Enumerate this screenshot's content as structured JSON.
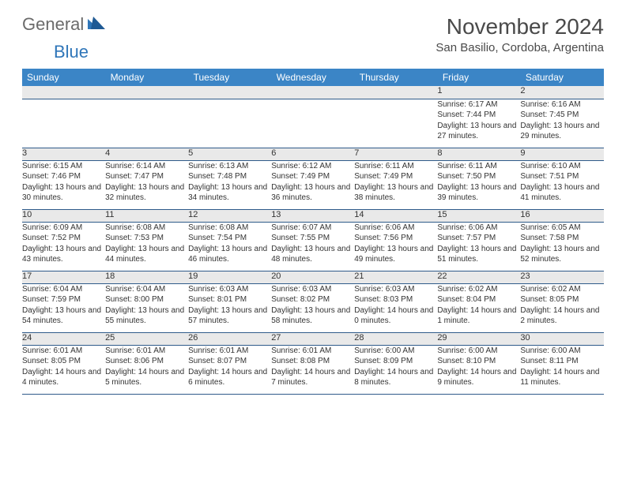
{
  "logo": {
    "word1": "General",
    "word2": "Blue"
  },
  "title": "November 2024",
  "location": "San Basilio, Cordoba, Argentina",
  "colors": {
    "header_bg": "#3b85c6",
    "header_text": "#ffffff",
    "daynum_bg": "#e9e9e9",
    "border": "#2f5b8a",
    "logo_gray": "#6b6b6b",
    "logo_blue": "#2f76b9"
  },
  "day_headers": [
    "Sunday",
    "Monday",
    "Tuesday",
    "Wednesday",
    "Thursday",
    "Friday",
    "Saturday"
  ],
  "weeks": [
    [
      null,
      null,
      null,
      null,
      null,
      {
        "n": "1",
        "sr": "6:17 AM",
        "ss": "7:44 PM",
        "dl": "13 hours and 27 minutes."
      },
      {
        "n": "2",
        "sr": "6:16 AM",
        "ss": "7:45 PM",
        "dl": "13 hours and 29 minutes."
      }
    ],
    [
      {
        "n": "3",
        "sr": "6:15 AM",
        "ss": "7:46 PM",
        "dl": "13 hours and 30 minutes."
      },
      {
        "n": "4",
        "sr": "6:14 AM",
        "ss": "7:47 PM",
        "dl": "13 hours and 32 minutes."
      },
      {
        "n": "5",
        "sr": "6:13 AM",
        "ss": "7:48 PM",
        "dl": "13 hours and 34 minutes."
      },
      {
        "n": "6",
        "sr": "6:12 AM",
        "ss": "7:49 PM",
        "dl": "13 hours and 36 minutes."
      },
      {
        "n": "7",
        "sr": "6:11 AM",
        "ss": "7:49 PM",
        "dl": "13 hours and 38 minutes."
      },
      {
        "n": "8",
        "sr": "6:11 AM",
        "ss": "7:50 PM",
        "dl": "13 hours and 39 minutes."
      },
      {
        "n": "9",
        "sr": "6:10 AM",
        "ss": "7:51 PM",
        "dl": "13 hours and 41 minutes."
      }
    ],
    [
      {
        "n": "10",
        "sr": "6:09 AM",
        "ss": "7:52 PM",
        "dl": "13 hours and 43 minutes."
      },
      {
        "n": "11",
        "sr": "6:08 AM",
        "ss": "7:53 PM",
        "dl": "13 hours and 44 minutes."
      },
      {
        "n": "12",
        "sr": "6:08 AM",
        "ss": "7:54 PM",
        "dl": "13 hours and 46 minutes."
      },
      {
        "n": "13",
        "sr": "6:07 AM",
        "ss": "7:55 PM",
        "dl": "13 hours and 48 minutes."
      },
      {
        "n": "14",
        "sr": "6:06 AM",
        "ss": "7:56 PM",
        "dl": "13 hours and 49 minutes."
      },
      {
        "n": "15",
        "sr": "6:06 AM",
        "ss": "7:57 PM",
        "dl": "13 hours and 51 minutes."
      },
      {
        "n": "16",
        "sr": "6:05 AM",
        "ss": "7:58 PM",
        "dl": "13 hours and 52 minutes."
      }
    ],
    [
      {
        "n": "17",
        "sr": "6:04 AM",
        "ss": "7:59 PM",
        "dl": "13 hours and 54 minutes."
      },
      {
        "n": "18",
        "sr": "6:04 AM",
        "ss": "8:00 PM",
        "dl": "13 hours and 55 minutes."
      },
      {
        "n": "19",
        "sr": "6:03 AM",
        "ss": "8:01 PM",
        "dl": "13 hours and 57 minutes."
      },
      {
        "n": "20",
        "sr": "6:03 AM",
        "ss": "8:02 PM",
        "dl": "13 hours and 58 minutes."
      },
      {
        "n": "21",
        "sr": "6:03 AM",
        "ss": "8:03 PM",
        "dl": "14 hours and 0 minutes."
      },
      {
        "n": "22",
        "sr": "6:02 AM",
        "ss": "8:04 PM",
        "dl": "14 hours and 1 minute."
      },
      {
        "n": "23",
        "sr": "6:02 AM",
        "ss": "8:05 PM",
        "dl": "14 hours and 2 minutes."
      }
    ],
    [
      {
        "n": "24",
        "sr": "6:01 AM",
        "ss": "8:05 PM",
        "dl": "14 hours and 4 minutes."
      },
      {
        "n": "25",
        "sr": "6:01 AM",
        "ss": "8:06 PM",
        "dl": "14 hours and 5 minutes."
      },
      {
        "n": "26",
        "sr": "6:01 AM",
        "ss": "8:07 PM",
        "dl": "14 hours and 6 minutes."
      },
      {
        "n": "27",
        "sr": "6:01 AM",
        "ss": "8:08 PM",
        "dl": "14 hours and 7 minutes."
      },
      {
        "n": "28",
        "sr": "6:00 AM",
        "ss": "8:09 PM",
        "dl": "14 hours and 8 minutes."
      },
      {
        "n": "29",
        "sr": "6:00 AM",
        "ss": "8:10 PM",
        "dl": "14 hours and 9 minutes."
      },
      {
        "n": "30",
        "sr": "6:00 AM",
        "ss": "8:11 PM",
        "dl": "14 hours and 11 minutes."
      }
    ]
  ],
  "labels": {
    "sunrise": "Sunrise:",
    "sunset": "Sunset:",
    "daylight": "Daylight:"
  }
}
